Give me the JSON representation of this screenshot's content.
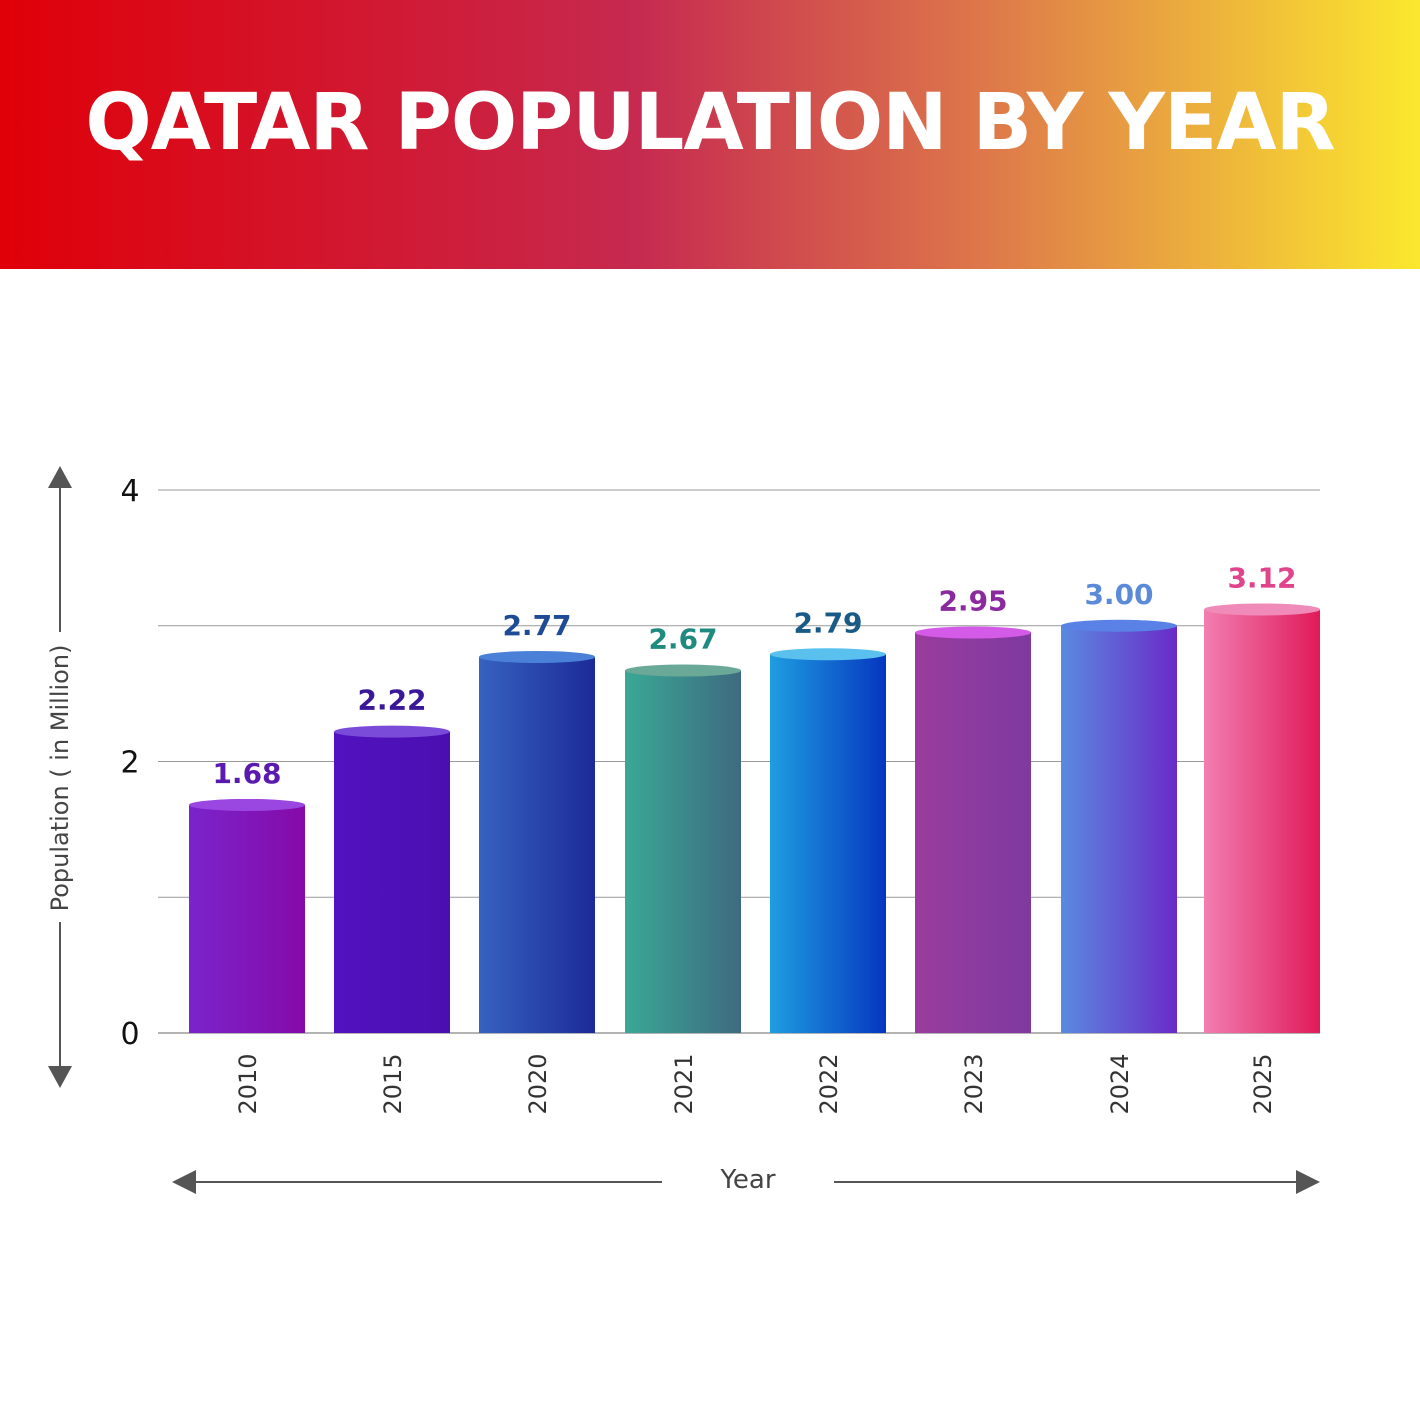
{
  "title": "QATAR POPULATION BY YEAR",
  "colors": {
    "banner_gradient": [
      "#e00008",
      "#c62a50",
      "#de7a4a",
      "#fbe82e"
    ],
    "grid": "#9a9a9a",
    "axis_text": "#111111",
    "arrow": "#555555"
  },
  "chart_data": {
    "type": "bar",
    "title": "QATAR POPULATION BY YEAR",
    "xlabel": "Year",
    "ylabel": "Population ( in Million)",
    "ylim": [
      0,
      4
    ],
    "yticks": [
      0,
      2,
      4
    ],
    "grid": true,
    "categories": [
      "2010",
      "2015",
      "2020",
      "2021",
      "2022",
      "2023",
      "2024",
      "2025"
    ],
    "values": [
      1.68,
      2.22,
      2.77,
      2.67,
      2.79,
      2.95,
      3.0,
      3.12
    ],
    "value_labels": [
      "1.68",
      "2.22",
      "2.77",
      "2.67",
      "2.79",
      "2.95",
      "3.00",
      "3.12"
    ],
    "bar_colors": [
      {
        "left": "#7a24cc",
        "right": "#860aa8",
        "top": "#9a46e0",
        "label": "#5a1ab0"
      },
      {
        "left": "#5212c0",
        "right": "#4a0fb0",
        "top": "#7a4ad8",
        "label": "#3a1898"
      },
      {
        "left": "#3662c0",
        "right": "#1c2a98",
        "top": "#4a80d8",
        "label": "#1e4a96"
      },
      {
        "left": "#3aa896",
        "right": "#3e6a80",
        "top": "#6aa898",
        "label": "#1e8a80"
      },
      {
        "left": "#1e9ee0",
        "right": "#0636c0",
        "top": "#5ac0ee",
        "label": "#1a5a86"
      },
      {
        "left": "#9a3c9e",
        "right": "#7e3aa0",
        "top": "#d45ae8",
        "label": "#8a2a9e"
      },
      {
        "left": "#5a8ae0",
        "right": "#6a2ac8",
        "top": "#5a82e6",
        "label": "#5a8ad8"
      },
      {
        "left": "#f27eb0",
        "right": "#e01a5a",
        "top": "#f08ab8",
        "label": "#e0448a"
      }
    ]
  }
}
